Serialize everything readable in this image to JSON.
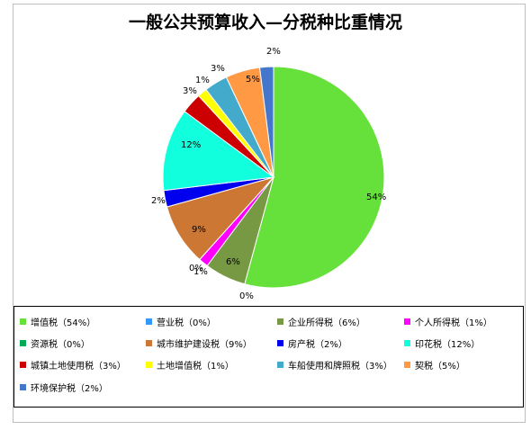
{
  "chart_data": {
    "type": "pie",
    "title": "一般公共预算收入—分税种比重情况",
    "slices": [
      {
        "name": "增值税（54%）",
        "value": 54,
        "label": "54%",
        "color": "#66e03a"
      },
      {
        "name": "营业税（0%）",
        "value": 0,
        "label": "0%",
        "color": "#3399ff"
      },
      {
        "name": "企业所得税（6%）",
        "value": 6,
        "label": "6%",
        "color": "#779944"
      },
      {
        "name": "个人所得税（1%）",
        "value": 1.4,
        "label": "1%",
        "color": "#ff00ff"
      },
      {
        "name": "资源税（0%）",
        "value": 0,
        "label": "0%",
        "color": "#00aa55"
      },
      {
        "name": "城市维护建设税（9%）",
        "value": 9,
        "label": "9%",
        "color": "#cc7733"
      },
      {
        "name": "房产税（2%）",
        "value": 2.4,
        "label": "2%",
        "color": "#0000ee"
      },
      {
        "name": "印花税（12%）",
        "value": 12,
        "label": "12%",
        "color": "#11ffdd"
      },
      {
        "name": "城镇土地使用税（3%）",
        "value": 3,
        "label": "3%",
        "color": "#cc0000"
      },
      {
        "name": "土地增值税（1%）",
        "value": 1.4,
        "label": "1%",
        "color": "#ffff00"
      },
      {
        "name": "车船使用和牌照税（3%）",
        "value": 3.4,
        "label": "3%",
        "color": "#44aacc"
      },
      {
        "name": "契税（5%）",
        "value": 5,
        "label": "5%",
        "color": "#ff9944"
      },
      {
        "name": "环境保护税（2%）",
        "value": 2,
        "label": "2%",
        "color": "#4477cc"
      }
    ]
  }
}
